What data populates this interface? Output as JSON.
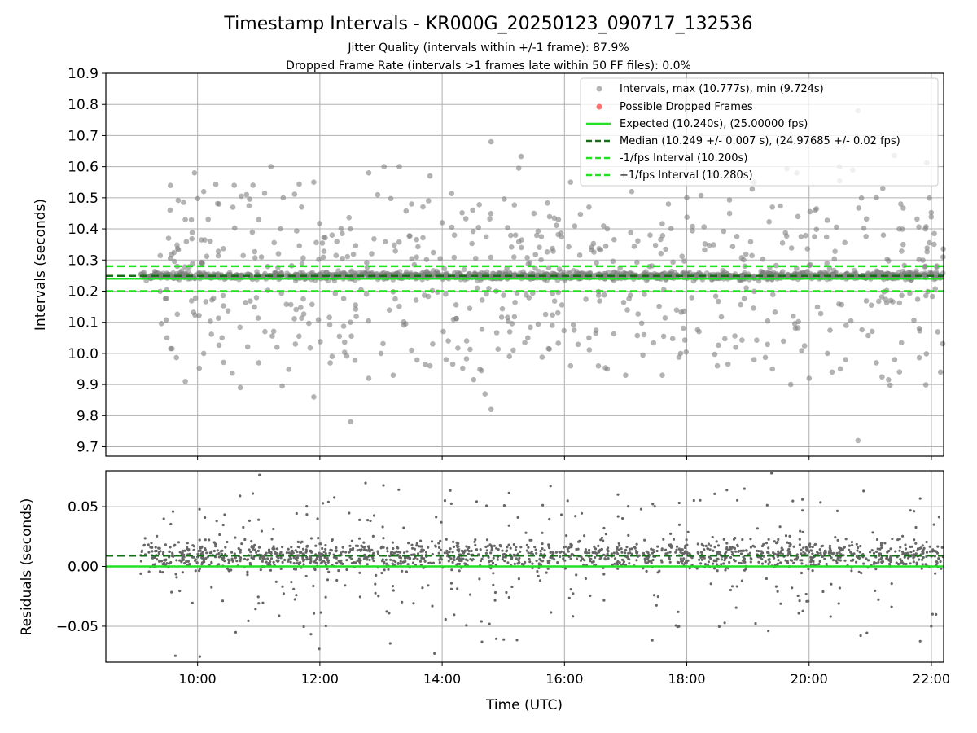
{
  "figure": {
    "title": "Timestamp Intervals - KR000G_20250123_090717_132536",
    "subtitle_1": "Jitter Quality (intervals within +/-1 frame): 87.9%",
    "subtitle_2": "Dropped Frame Rate (intervals >1 frames late within 50 FF files): 0.0%"
  },
  "chart_data": [
    {
      "type": "scatter",
      "title": "Timestamp Intervals - KR000G_20250123_090717_132536",
      "xlabel": "",
      "ylabel": "Intervals (seconds)",
      "x_unit": "hours UTC",
      "xlim": [
        8.5,
        22.2
      ],
      "ylim": [
        9.67,
        10.9
      ],
      "yticks": [
        "9.7",
        "9.8",
        "9.9",
        "10.0",
        "10.1",
        "10.2",
        "10.3",
        "10.4",
        "10.5",
        "10.6",
        "10.7",
        "10.8",
        "10.9"
      ],
      "grid": true,
      "legend_position": "top-right",
      "x_range_points": [
        9.07,
        22.2
      ],
      "series": [
        {
          "name": "Intervals, max (10.777s), min (9.724s)",
          "kind": "scatter",
          "color": "#808080",
          "max": 10.777,
          "min": 9.724,
          "core_value": 10.24
        },
        {
          "name": "Possible Dropped Frames",
          "kind": "scatter",
          "color": "#ff3333",
          "count": 0
        },
        {
          "name": "Expected (10.240s), (25.00000 fps)",
          "kind": "hline",
          "value": 10.24,
          "color": "#22e022",
          "style": "solid"
        },
        {
          "name": "Median (10.249 +/- 0.007 s), (24.97685 +/- 0.02 fps)",
          "kind": "hline",
          "value": 10.249,
          "color": "#1a6b1a",
          "style": "dashed"
        },
        {
          "name": "-1/fps Interval (10.200s)",
          "kind": "hline",
          "value": 10.2,
          "color": "#22e022",
          "style": "dashed"
        },
        {
          "name": "+1/fps Interval (10.280s)",
          "kind": "hline",
          "value": 10.28,
          "color": "#22e022",
          "style": "dashed"
        }
      ],
      "outlier_points": [
        [
          9.55,
          10.46
        ],
        [
          9.8,
          10.43
        ],
        [
          9.95,
          10.58
        ],
        [
          10.1,
          10.52
        ],
        [
          10.35,
          10.48
        ],
        [
          10.6,
          10.54
        ],
        [
          10.8,
          10.51
        ],
        [
          11.0,
          10.43
        ],
        [
          11.2,
          10.6
        ],
        [
          11.4,
          10.5
        ],
        [
          11.7,
          10.47
        ],
        [
          11.9,
          10.55
        ],
        [
          12.2,
          10.38
        ],
        [
          12.5,
          10.4
        ],
        [
          12.8,
          10.58
        ],
        [
          13.05,
          10.6
        ],
        [
          13.3,
          10.6
        ],
        [
          13.5,
          10.48
        ],
        [
          13.8,
          10.57
        ],
        [
          14.0,
          10.42
        ],
        [
          14.2,
          10.38
        ],
        [
          14.5,
          10.46
        ],
        [
          14.8,
          10.68
        ],
        [
          15.2,
          10.38
        ],
        [
          15.5,
          10.45
        ],
        [
          15.9,
          10.43
        ],
        [
          16.1,
          10.55
        ],
        [
          16.4,
          10.47
        ],
        [
          16.7,
          10.4
        ],
        [
          17.1,
          10.52
        ],
        [
          17.4,
          10.38
        ],
        [
          17.7,
          10.48
        ],
        [
          18.0,
          10.5
        ],
        [
          18.4,
          10.57
        ],
        [
          18.7,
          10.45
        ],
        [
          19.1,
          10.55
        ],
        [
          19.4,
          10.47
        ],
        [
          19.8,
          10.58
        ],
        [
          20.1,
          10.46
        ],
        [
          20.5,
          10.6
        ],
        [
          20.8,
          10.78
        ],
        [
          21.1,
          10.5
        ],
        [
          21.5,
          10.48
        ],
        [
          21.9,
          10.4
        ],
        [
          9.5,
          10.05
        ],
        [
          9.8,
          9.91
        ],
        [
          10.1,
          10.0
        ],
        [
          10.4,
          10.05
        ],
        [
          10.7,
          9.89
        ],
        [
          11.0,
          9.97
        ],
        [
          11.3,
          10.02
        ],
        [
          11.6,
          10.03
        ],
        [
          11.9,
          9.86
        ],
        [
          12.2,
          9.99
        ],
        [
          12.5,
          10.1
        ],
        [
          12.8,
          9.92
        ],
        [
          13.0,
          10.0
        ],
        [
          13.2,
          9.93
        ],
        [
          13.5,
          10.01
        ],
        [
          13.8,
          9.96
        ],
        [
          14.1,
          10.04
        ],
        [
          14.4,
          10.04
        ],
        [
          14.7,
          9.87
        ],
        [
          14.8,
          9.82
        ],
        [
          15.1,
          9.99
        ],
        [
          15.4,
          10.05
        ],
        [
          15.8,
          10.09
        ],
        [
          16.1,
          9.96
        ],
        [
          16.4,
          10.05
        ],
        [
          16.7,
          9.95
        ],
        [
          17.0,
          9.93
        ],
        [
          17.3,
          10.06
        ],
        [
          17.6,
          9.93
        ],
        [
          17.9,
          10.0
        ],
        [
          18.2,
          10.07
        ],
        [
          18.5,
          9.96
        ],
        [
          18.8,
          10.02
        ],
        [
          19.1,
          9.98
        ],
        [
          19.4,
          9.95
        ],
        [
          19.7,
          9.9
        ],
        [
          20.0,
          9.92
        ],
        [
          20.3,
          10.0
        ],
        [
          20.6,
          9.98
        ],
        [
          20.8,
          9.72
        ],
        [
          21.1,
          9.97
        ],
        [
          21.4,
          9.98
        ],
        [
          21.8,
          10.08
        ],
        [
          22.15,
          9.94
        ]
      ]
    },
    {
      "type": "scatter",
      "title": "",
      "xlabel": "Time (UTC)",
      "ylabel": "Residuals (seconds)",
      "x_unit": "hours UTC",
      "xlim": [
        8.5,
        22.2
      ],
      "ylim": [
        -0.08,
        0.08
      ],
      "xticks": [
        "10:00",
        "12:00",
        "14:00",
        "16:00",
        "18:00",
        "20:00",
        "22:00"
      ],
      "yticks": [
        "−0.05",
        "0.00",
        "0.05"
      ],
      "grid": true,
      "series": [
        {
          "name": "",
          "kind": "scatter",
          "color": "#666666"
        },
        {
          "name": "",
          "kind": "hline",
          "value": 0.0,
          "color": "#22e022",
          "style": "solid"
        },
        {
          "name": "",
          "kind": "hline",
          "value": 0.009,
          "color": "#1a6b1a",
          "style": "dashed"
        }
      ]
    }
  ]
}
